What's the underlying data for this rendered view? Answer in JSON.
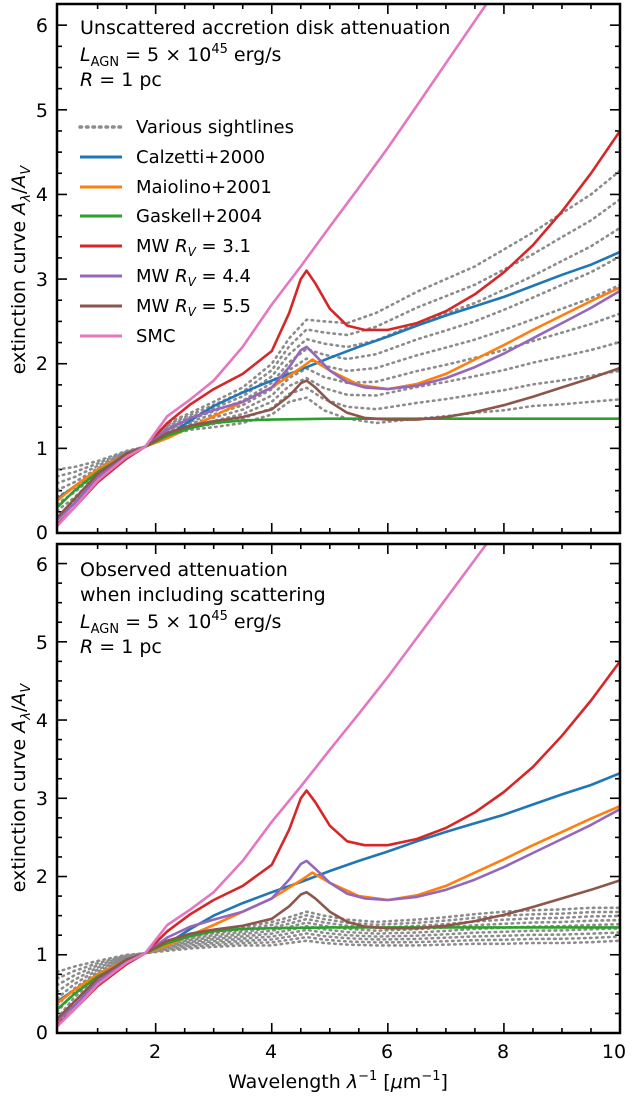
{
  "figure": {
    "x_axis_label": "Wavelength λ⁻¹ [μm⁻¹]",
    "x_ticks": [
      "2",
      "4",
      "6",
      "8",
      "10"
    ],
    "y_ticks": [
      "0",
      "1",
      "2",
      "3",
      "4",
      "5",
      "6"
    ],
    "colors": {
      "sightlines": "#8c8c8c",
      "calzetti": "#1f77b4",
      "maiolino": "#ff7f0e",
      "gaskell": "#2ca02c",
      "mw31": "#d62728",
      "mw44": "#9467bd",
      "mw55": "#8c564b",
      "smc": "#e377c2"
    }
  },
  "panels": [
    {
      "ylabel": "extinction curve A_λ/A_V",
      "annotation": [
        "Unscattered accretion disk attenuation",
        "L_AGN = 5 × 10^45 erg/s",
        "R = 1 pc"
      ],
      "legend": [
        "Various sightlines",
        "Calzetti+2000",
        "Maiolino+2001",
        "Gaskell+2004",
        "MW R_V = 3.1",
        "MW R_V = 4.4",
        "MW R_V = 5.5",
        "SMC"
      ]
    },
    {
      "ylabel": "extinction curve A_λ/A_V",
      "annotation": [
        "Observed attenuation",
        "when including scattering",
        "L_AGN = 5 × 10^45 erg/s",
        "R = 1 pc"
      ]
    }
  ],
  "chart_data": [
    {
      "type": "line",
      "xlabel": "Wavelength λ⁻¹ [μm⁻¹]",
      "ylabel": "extinction curve A_λ/A_V",
      "xlim": [
        0.3,
        10
      ],
      "ylim": [
        0,
        6.25
      ],
      "series": [
        {
          "name": "Calzetti+2000",
          "x": [
            0.3,
            0.6,
            1.0,
            1.5,
            1.82,
            2.2,
            2.6,
            3.0,
            3.5,
            4.0,
            4.5,
            5.0,
            5.5,
            6.0,
            6.5,
            7.0,
            7.5,
            8.0,
            8.5,
            9.0,
            9.5,
            10.0
          ],
          "y": [
            0.4,
            0.55,
            0.75,
            0.93,
            1.02,
            1.14,
            1.33,
            1.5,
            1.66,
            1.8,
            1.93,
            2.07,
            2.2,
            2.32,
            2.45,
            2.57,
            2.68,
            2.79,
            2.92,
            3.05,
            3.17,
            3.32
          ]
        },
        {
          "name": "Maiolino+2001",
          "x": [
            0.3,
            0.6,
            1.0,
            1.5,
            1.82,
            2.2,
            2.6,
            3.0,
            3.5,
            4.0,
            4.5,
            4.7,
            5.0,
            5.5,
            6.0,
            6.5,
            7.0,
            7.5,
            8.0,
            8.5,
            9.0,
            9.5,
            10.0
          ],
          "y": [
            0.38,
            0.55,
            0.75,
            0.93,
            1.02,
            1.12,
            1.25,
            1.38,
            1.55,
            1.72,
            1.95,
            2.05,
            1.92,
            1.75,
            1.7,
            1.76,
            1.88,
            2.05,
            2.22,
            2.4,
            2.57,
            2.74,
            2.9
          ]
        },
        {
          "name": "Gaskell+2004",
          "x": [
            0.3,
            0.6,
            1.0,
            1.5,
            1.82,
            2.2,
            2.6,
            3.0,
            3.5,
            4.0,
            5.0,
            6.0,
            7.0,
            8.0,
            9.0,
            10.0
          ],
          "y": [
            0.3,
            0.5,
            0.72,
            0.92,
            1.02,
            1.15,
            1.24,
            1.3,
            1.33,
            1.34,
            1.35,
            1.35,
            1.35,
            1.35,
            1.35,
            1.35
          ]
        },
        {
          "name": "MW R_V = 3.1",
          "x": [
            0.3,
            0.6,
            1.0,
            1.5,
            1.82,
            2.2,
            2.6,
            3.0,
            3.5,
            4.0,
            4.3,
            4.5,
            4.6,
            4.75,
            5.0,
            5.3,
            5.6,
            6.0,
            6.5,
            7.0,
            7.5,
            8.0,
            8.5,
            9.0,
            9.5,
            10.0
          ],
          "y": [
            0.1,
            0.3,
            0.6,
            0.88,
            1.02,
            1.3,
            1.52,
            1.7,
            1.88,
            2.15,
            2.6,
            3.0,
            3.1,
            2.95,
            2.65,
            2.45,
            2.4,
            2.4,
            2.48,
            2.62,
            2.82,
            3.08,
            3.4,
            3.8,
            4.25,
            4.75
          ]
        },
        {
          "name": "MW R_V = 4.4",
          "x": [
            0.3,
            0.6,
            1.0,
            1.5,
            1.82,
            2.2,
            2.6,
            3.0,
            3.5,
            4.0,
            4.3,
            4.5,
            4.6,
            4.75,
            5.0,
            5.3,
            5.6,
            6.0,
            6.5,
            7.0,
            7.5,
            8.0,
            8.5,
            9.0,
            9.5,
            10.0
          ],
          "y": [
            0.15,
            0.35,
            0.66,
            0.92,
            1.02,
            1.22,
            1.36,
            1.45,
            1.55,
            1.72,
            1.96,
            2.16,
            2.2,
            2.1,
            1.92,
            1.78,
            1.72,
            1.7,
            1.74,
            1.83,
            1.96,
            2.12,
            2.3,
            2.48,
            2.66,
            2.86
          ]
        },
        {
          "name": "MW R_V = 5.5",
          "x": [
            0.3,
            0.6,
            1.0,
            1.5,
            1.82,
            2.2,
            2.6,
            3.0,
            3.5,
            4.0,
            4.3,
            4.5,
            4.6,
            4.75,
            5.0,
            5.3,
            5.6,
            6.0,
            6.5,
            7.0,
            7.5,
            8.0,
            8.5,
            9.0,
            9.5,
            10.0
          ],
          "y": [
            0.18,
            0.4,
            0.7,
            0.94,
            1.02,
            1.18,
            1.27,
            1.32,
            1.37,
            1.46,
            1.62,
            1.77,
            1.8,
            1.72,
            1.55,
            1.42,
            1.36,
            1.34,
            1.34,
            1.37,
            1.43,
            1.51,
            1.61,
            1.72,
            1.83,
            1.95
          ]
        },
        {
          "name": "SMC",
          "x": [
            0.3,
            0.6,
            1.0,
            1.5,
            1.82,
            2.2,
            2.6,
            3.0,
            3.5,
            4.0,
            4.5,
            5.0,
            5.5,
            6.0,
            6.5,
            7.0,
            7.5,
            7.9
          ],
          "y": [
            0.08,
            0.3,
            0.62,
            0.9,
            1.02,
            1.38,
            1.58,
            1.8,
            2.2,
            2.7,
            3.15,
            3.62,
            4.08,
            4.55,
            5.05,
            5.55,
            6.05,
            6.45
          ]
        },
        {
          "name": "Various sightlines",
          "style": "dotted",
          "x": [
            0.3,
            0.6,
            1.0,
            1.5,
            1.82,
            2.2,
            2.6,
            3.0,
            3.5,
            4.0,
            4.3,
            4.6,
            4.9,
            5.3,
            5.8,
            6.5,
            7.0,
            7.5,
            8.0,
            8.5,
            9.0,
            9.5,
            10.0
          ],
          "y_band": [
            [
              0.1,
              0.75
            ],
            [
              0.3,
              0.78
            ],
            [
              0.62,
              0.85
            ],
            [
              0.9,
              0.97
            ],
            [
              1.02,
              1.02
            ],
            [
              1.15,
              1.3
            ],
            [
              1.22,
              1.42
            ],
            [
              1.25,
              1.55
            ],
            [
              1.3,
              1.72
            ],
            [
              1.4,
              2.0
            ],
            [
              1.55,
              2.3
            ],
            [
              1.6,
              2.52
            ],
            [
              1.45,
              2.5
            ],
            [
              1.35,
              2.48
            ],
            [
              1.3,
              2.6
            ],
            [
              1.35,
              2.85
            ],
            [
              1.38,
              3.0
            ],
            [
              1.42,
              3.15
            ],
            [
              1.45,
              3.35
            ],
            [
              1.5,
              3.55
            ],
            [
              1.52,
              3.78
            ],
            [
              1.55,
              4.0
            ],
            [
              1.58,
              4.28
            ]
          ]
        }
      ]
    },
    {
      "type": "line",
      "xlabel": "Wavelength λ⁻¹ [μm⁻¹]",
      "ylabel": "extinction curve A_λ/A_V",
      "xlim": [
        0.3,
        10
      ],
      "ylim": [
        0,
        6.25
      ],
      "series": [
        {
          "name": "Calzetti+2000",
          "x": [
            0.3,
            0.6,
            1.0,
            1.5,
            1.82,
            2.2,
            2.6,
            3.0,
            3.5,
            4.0,
            4.5,
            5.0,
            5.5,
            6.0,
            6.5,
            7.0,
            7.5,
            8.0,
            8.5,
            9.0,
            9.5,
            10.0
          ],
          "y": [
            0.4,
            0.55,
            0.75,
            0.93,
            1.02,
            1.14,
            1.33,
            1.5,
            1.66,
            1.8,
            1.93,
            2.07,
            2.2,
            2.32,
            2.45,
            2.57,
            2.68,
            2.79,
            2.92,
            3.05,
            3.17,
            3.32
          ]
        },
        {
          "name": "Maiolino+2001",
          "x": [
            0.3,
            0.6,
            1.0,
            1.5,
            1.82,
            2.2,
            2.6,
            3.0,
            3.5,
            4.0,
            4.5,
            4.7,
            5.0,
            5.5,
            6.0,
            6.5,
            7.0,
            7.5,
            8.0,
            8.5,
            9.0,
            9.5,
            10.0
          ],
          "y": [
            0.38,
            0.55,
            0.75,
            0.93,
            1.02,
            1.12,
            1.25,
            1.38,
            1.55,
            1.72,
            1.95,
            2.05,
            1.92,
            1.75,
            1.7,
            1.76,
            1.88,
            2.05,
            2.22,
            2.4,
            2.57,
            2.74,
            2.9
          ]
        },
        {
          "name": "Gaskell+2004",
          "x": [
            0.3,
            0.6,
            1.0,
            1.5,
            1.82,
            2.2,
            2.6,
            3.0,
            3.5,
            4.0,
            5.0,
            6.0,
            7.0,
            8.0,
            9.0,
            10.0
          ],
          "y": [
            0.3,
            0.5,
            0.72,
            0.92,
            1.02,
            1.15,
            1.24,
            1.3,
            1.33,
            1.34,
            1.35,
            1.35,
            1.35,
            1.35,
            1.35,
            1.35
          ]
        },
        {
          "name": "MW R_V = 3.1",
          "x": [
            0.3,
            0.6,
            1.0,
            1.5,
            1.82,
            2.2,
            2.6,
            3.0,
            3.5,
            4.0,
            4.3,
            4.5,
            4.6,
            4.75,
            5.0,
            5.3,
            5.6,
            6.0,
            6.5,
            7.0,
            7.5,
            8.0,
            8.5,
            9.0,
            9.5,
            10.0
          ],
          "y": [
            0.1,
            0.3,
            0.6,
            0.88,
            1.02,
            1.3,
            1.52,
            1.7,
            1.88,
            2.15,
            2.6,
            3.0,
            3.1,
            2.95,
            2.65,
            2.45,
            2.4,
            2.4,
            2.48,
            2.62,
            2.82,
            3.08,
            3.4,
            3.8,
            4.25,
            4.75
          ]
        },
        {
          "name": "MW R_V = 4.4",
          "x": [
            0.3,
            0.6,
            1.0,
            1.5,
            1.82,
            2.2,
            2.6,
            3.0,
            3.5,
            4.0,
            4.3,
            4.5,
            4.6,
            4.75,
            5.0,
            5.3,
            5.6,
            6.0,
            6.5,
            7.0,
            7.5,
            8.0,
            8.5,
            9.0,
            9.5,
            10.0
          ],
          "y": [
            0.15,
            0.35,
            0.66,
            0.92,
            1.02,
            1.22,
            1.36,
            1.45,
            1.55,
            1.72,
            1.96,
            2.16,
            2.2,
            2.1,
            1.92,
            1.78,
            1.72,
            1.7,
            1.74,
            1.83,
            1.96,
            2.12,
            2.3,
            2.48,
            2.66,
            2.86
          ]
        },
        {
          "name": "MW R_V = 5.5",
          "x": [
            0.3,
            0.6,
            1.0,
            1.5,
            1.82,
            2.2,
            2.6,
            3.0,
            3.5,
            4.0,
            4.3,
            4.5,
            4.6,
            4.75,
            5.0,
            5.3,
            5.6,
            6.0,
            6.5,
            7.0,
            7.5,
            8.0,
            8.5,
            9.0,
            9.5,
            10.0
          ],
          "y": [
            0.18,
            0.4,
            0.7,
            0.94,
            1.02,
            1.18,
            1.27,
            1.32,
            1.37,
            1.46,
            1.62,
            1.77,
            1.8,
            1.72,
            1.55,
            1.42,
            1.36,
            1.34,
            1.34,
            1.37,
            1.43,
            1.51,
            1.61,
            1.72,
            1.83,
            1.95
          ]
        },
        {
          "name": "SMC",
          "x": [
            0.3,
            0.6,
            1.0,
            1.5,
            1.82,
            2.2,
            2.6,
            3.0,
            3.5,
            4.0,
            4.5,
            5.0,
            5.5,
            6.0,
            6.5,
            7.0,
            7.5,
            7.9
          ],
          "y": [
            0.08,
            0.3,
            0.62,
            0.9,
            1.02,
            1.38,
            1.58,
            1.8,
            2.2,
            2.7,
            3.15,
            3.62,
            4.08,
            4.55,
            5.05,
            5.55,
            6.05,
            6.45
          ]
        },
        {
          "name": "Various sightlines",
          "style": "dotted",
          "x": [
            0.3,
            0.6,
            1.0,
            1.5,
            1.82,
            2.2,
            2.6,
            3.0,
            3.5,
            4.0,
            4.3,
            4.6,
            4.9,
            5.3,
            5.8,
            6.5,
            7.0,
            7.5,
            8.0,
            8.5,
            9.0,
            9.5,
            10.0
          ],
          "y_band": [
            [
              0.1,
              0.78
            ],
            [
              0.4,
              0.85
            ],
            [
              0.7,
              0.92
            ],
            [
              0.92,
              1.0
            ],
            [
              1.02,
              1.02
            ],
            [
              1.05,
              1.18
            ],
            [
              1.08,
              1.25
            ],
            [
              1.1,
              1.3
            ],
            [
              1.12,
              1.35
            ],
            [
              1.12,
              1.42
            ],
            [
              1.15,
              1.48
            ],
            [
              1.18,
              1.55
            ],
            [
              1.15,
              1.5
            ],
            [
              1.13,
              1.45
            ],
            [
              1.12,
              1.42
            ],
            [
              1.12,
              1.45
            ],
            [
              1.13,
              1.48
            ],
            [
              1.14,
              1.52
            ],
            [
              1.14,
              1.55
            ],
            [
              1.15,
              1.57
            ],
            [
              1.15,
              1.58
            ],
            [
              1.16,
              1.6
            ],
            [
              1.18,
              1.6
            ]
          ]
        }
      ]
    }
  ]
}
